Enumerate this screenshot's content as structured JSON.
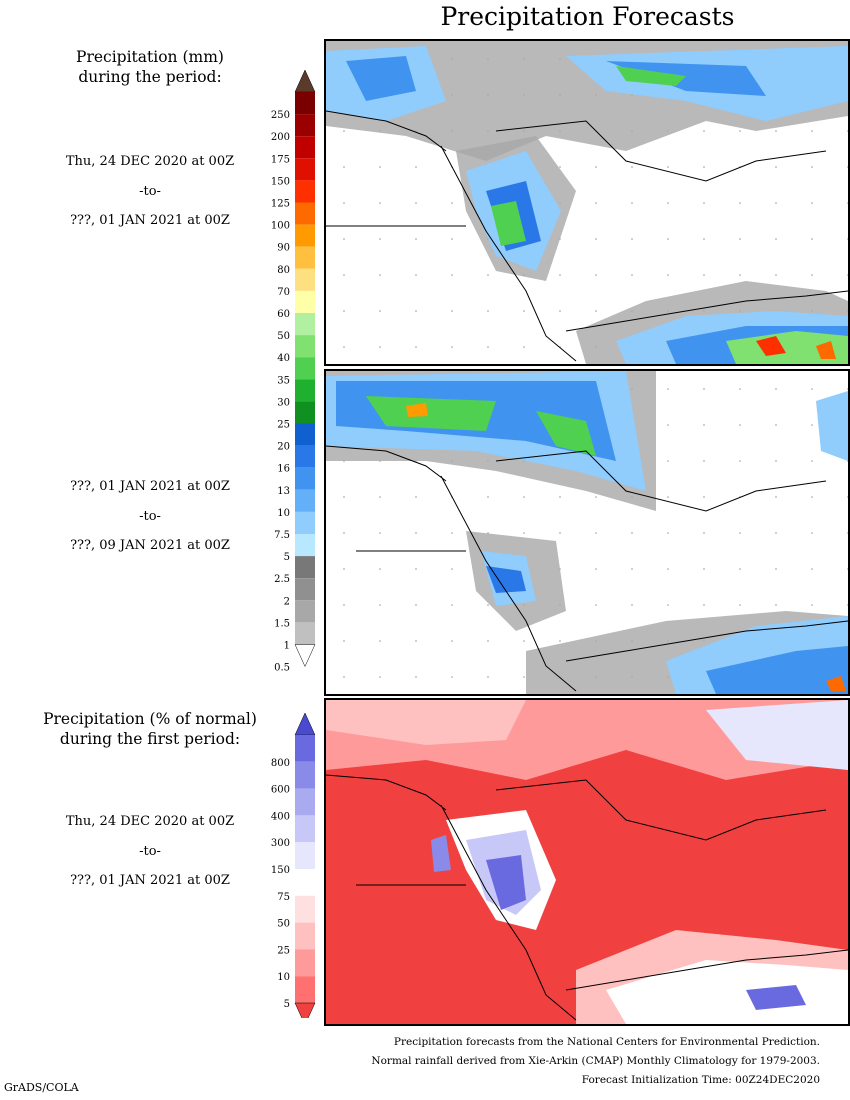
{
  "title": "Precipitation Forecasts",
  "sections": {
    "amount": {
      "title_line1": "Precipitation (mm)",
      "title_line2": "during the period:"
    },
    "percent": {
      "title_line1": "Precipitation (% of normal)",
      "title_line2": "during the first period:"
    }
  },
  "periods": [
    {
      "start": "Thu, 24 DEC 2020 at 00Z",
      "sep": "-to-",
      "end": "???, 01 JAN 2021 at 00Z"
    },
    {
      "start": "???, 01 JAN 2021 at 00Z",
      "sep": "-to-",
      "end": "???, 09 JAN 2021 at 00Z"
    },
    {
      "start": "Thu, 24 DEC 2020 at 00Z",
      "sep": "-to-",
      "end": "???, 01 JAN 2021 at 00Z"
    }
  ],
  "mm_colorbar": {
    "labels": [
      "250",
      "200",
      "175",
      "150",
      "125",
      "100",
      "90",
      "80",
      "70",
      "60",
      "50",
      "40",
      "35",
      "30",
      "25",
      "20",
      "16",
      "13",
      "10",
      "7.5",
      "5",
      "2.5",
      "2",
      "1.5",
      "1",
      "0.5"
    ],
    "colors": [
      "#5a3a2a",
      "#7a0000",
      "#9a0000",
      "#c00000",
      "#e01000",
      "#ff3000",
      "#ff6a00",
      "#ff9a00",
      "#ffc040",
      "#ffe080",
      "#ffffa8",
      "#b0f0a0",
      "#80e070",
      "#50d050",
      "#20b030",
      "#109020",
      "#1060d0",
      "#2a78e8",
      "#4094f0",
      "#64b0f8",
      "#90ccfc",
      "#b8e8ff",
      "#787878",
      "#909090",
      "#a8a8a8",
      "#c0c0c0",
      "#ffffff"
    ]
  },
  "pct_colorbar": {
    "labels": [
      "800",
      "600",
      "400",
      "300",
      "150",
      "75",
      "50",
      "25",
      "10",
      "5"
    ],
    "colors": [
      "#4a4ad0",
      "#6a6ae0",
      "#8a8ae8",
      "#aaaaf0",
      "#c8c8f8",
      "#e6e6fc",
      "#ffffff",
      "#ffe0e0",
      "#ffc0c0",
      "#ff9a9a",
      "#ff7070",
      "#f04040"
    ]
  },
  "footer": {
    "line1": "Precipitation forecasts from the National Centers for Environmental Prediction.",
    "line2": "Normal rainfall derived from Xie-Arkin (CMAP) Monthly Climatology for 1979-2003.",
    "line3": "Forecast Initialization Time: 00Z24DEC2020"
  },
  "credit": "GrADS/COLA"
}
